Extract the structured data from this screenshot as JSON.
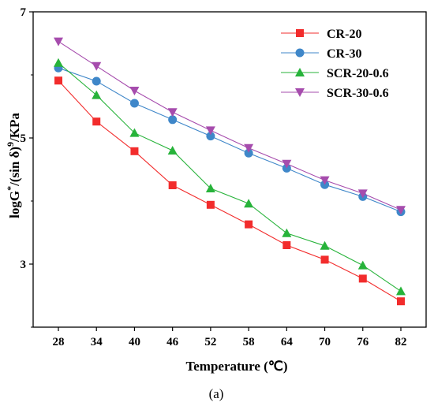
{
  "chart_data": {
    "type": "line",
    "title": "",
    "xlabel": "Temperature (℃)",
    "ylabel_parts": {
      "base": "logG",
      "sup1": "*",
      "mid": "/(sin δ)",
      "sup2": "9",
      "tail": "/KPa"
    },
    "caption": "(a)",
    "x": [
      28,
      34,
      40,
      46,
      52,
      58,
      64,
      70,
      76,
      82
    ],
    "x_tick_labels": [
      "28",
      "34",
      "40",
      "46",
      "52",
      "58",
      "64",
      "70",
      "76",
      "82"
    ],
    "y_ticks": [
      3,
      5,
      7
    ],
    "y_tick_labels": [
      "3",
      "5",
      "7"
    ],
    "ylim": [
      2,
      7
    ],
    "grid": false,
    "legend_position": "top-right",
    "series": [
      {
        "name": "CR-20",
        "color": "#f22c2c",
        "marker": "square",
        "values": [
          5.91,
          5.26,
          4.79,
          4.25,
          3.94,
          3.63,
          3.3,
          3.07,
          2.77,
          2.41
        ]
      },
      {
        "name": "CR-30",
        "color": "#3f87c9",
        "marker": "circle",
        "values": [
          6.11,
          5.9,
          5.55,
          5.29,
          5.03,
          4.76,
          4.52,
          4.26,
          4.07,
          3.83
        ]
      },
      {
        "name": "SCR-20-0.6",
        "color": "#27b33a",
        "marker": "triangle-up",
        "values": [
          6.19,
          5.68,
          5.08,
          4.8,
          4.2,
          3.96,
          3.49,
          3.29,
          2.98,
          2.57
        ]
      },
      {
        "name": "SCR-30-0.6",
        "color": "#a64cad",
        "marker": "triangle-down",
        "values": [
          6.53,
          6.14,
          5.75,
          5.41,
          5.12,
          4.84,
          4.59,
          4.33,
          4.12,
          3.86
        ]
      }
    ]
  }
}
